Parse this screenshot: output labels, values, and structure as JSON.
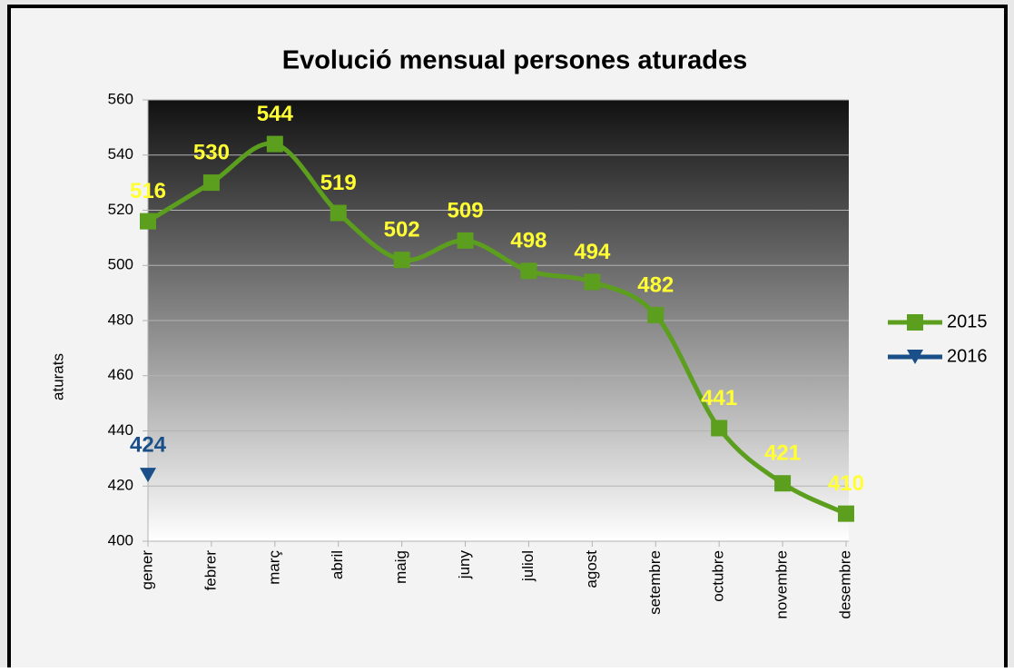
{
  "chart_data": {
    "type": "line",
    "title": "Evolució mensual persones aturades",
    "y_label": "aturats",
    "categories": [
      "gener",
      "febrer",
      "març",
      "abril",
      "maig",
      "juny",
      "juliol",
      "agost",
      "setembre",
      "octubre",
      "novembre",
      "desembre"
    ],
    "series": [
      {
        "name": "2015",
        "color": "#5c9e1e",
        "label_color": "#ffff33",
        "marker": "square",
        "values": [
          516,
          530,
          544,
          519,
          502,
          509,
          498,
          494,
          482,
          441,
          421,
          410
        ]
      },
      {
        "name": "2016",
        "color": "#1a4f8a",
        "label_color": "#1a4f8a",
        "marker": "triangle",
        "values": [
          424,
          null,
          null,
          null,
          null,
          null,
          null,
          null,
          null,
          null,
          null,
          null
        ]
      }
    ],
    "ylim": [
      400,
      560
    ],
    "yticks": [
      400,
      420,
      440,
      460,
      480,
      500,
      520,
      540,
      560
    ],
    "grid": true,
    "smooth": true,
    "legend": "right"
  }
}
